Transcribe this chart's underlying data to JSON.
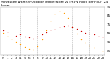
{
  "title_line1": "Milwaukee Weather Outdoor Temperature",
  "title_line2": "vs THSW Index",
  "title_line3": "per Hour",
  "title_line4": "(24 Hours)",
  "background_color": "#ffffff",
  "plot_bg_color": "#ffffff",
  "grid_color": "#aaaaaa",
  "temp_color": "#cc0000",
  "thsw_color": "#ff9900",
  "black_dot_color": "#000000",
  "hours": [
    0,
    1,
    2,
    3,
    4,
    5,
    6,
    7,
    8,
    9,
    10,
    11,
    12,
    13,
    14,
    15,
    16,
    17,
    18,
    19,
    20,
    21,
    22,
    23
  ],
  "temp": [
    68,
    66,
    64,
    62,
    63,
    61,
    60,
    59,
    61,
    63,
    66,
    68,
    70,
    72,
    73,
    74,
    72,
    70,
    67,
    65,
    64,
    63,
    62,
    60
  ],
  "thsw": [
    65,
    62,
    58,
    55,
    52,
    49,
    47,
    46,
    50,
    58,
    68,
    78,
    86,
    90,
    88,
    82,
    72,
    64,
    58,
    54,
    51,
    48,
    46,
    44
  ],
  "ylim_min": 40,
  "ylim_max": 95,
  "ytick_vals": [
    45,
    55,
    65,
    75,
    85,
    95
  ],
  "ytick_labels": [
    "45",
    "55",
    "65",
    "75",
    "85",
    "95"
  ],
  "xlabel_fontsize": 3.0,
  "ylabel_fontsize": 3.0,
  "title_fontsize": 3.2,
  "marker_size": 1.0,
  "tick_label_color": "#000000",
  "title_color": "#000000",
  "dashed_vline_hours": [
    4,
    8,
    12,
    16,
    20
  ],
  "spine_color": "#888888"
}
